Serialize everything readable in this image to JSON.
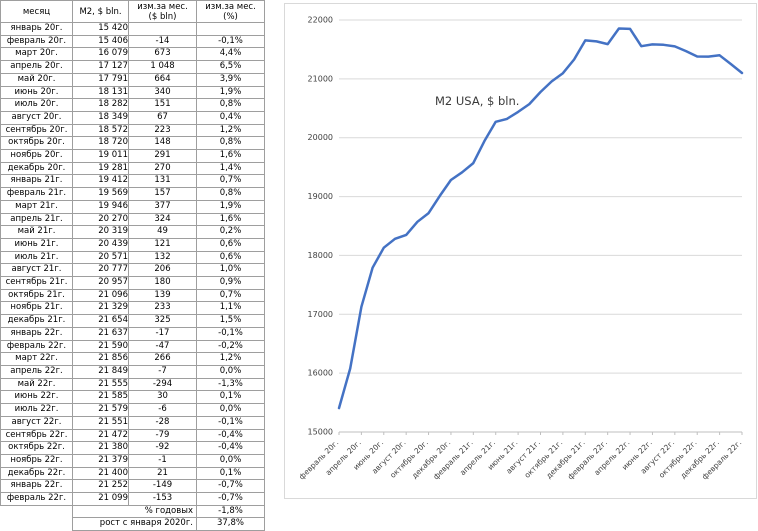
{
  "table": {
    "headers": {
      "month": "месяц",
      "m2": "M2, $ bln.",
      "chg_abs_1": "изм.за мес.",
      "chg_abs_2": "($ bln)",
      "chg_pct_1": "изм.за мес.",
      "chg_pct_2": "(%)"
    },
    "rows": [
      [
        "январь 20г.",
        "15 420",
        "",
        ""
      ],
      [
        "февраль 20г.",
        "15 406",
        "-14",
        "-0,1%"
      ],
      [
        "март 20г.",
        "16 079",
        "673",
        "4,4%"
      ],
      [
        "апрель 20г.",
        "17 127",
        "1 048",
        "6,5%"
      ],
      [
        "май 20г.",
        "17 791",
        "664",
        "3,9%"
      ],
      [
        "июнь 20г.",
        "18 131",
        "340",
        "1,9%"
      ],
      [
        "июль 20г.",
        "18 282",
        "151",
        "0,8%"
      ],
      [
        "август 20г.",
        "18 349",
        "67",
        "0,4%"
      ],
      [
        "сентябрь 20г.",
        "18 572",
        "223",
        "1,2%"
      ],
      [
        "октябрь 20г.",
        "18 720",
        "148",
        "0,8%"
      ],
      [
        "ноябрь 20г.",
        "19 011",
        "291",
        "1,6%"
      ],
      [
        "декабрь 20г.",
        "19 281",
        "270",
        "1,4%"
      ],
      [
        "январь 21г.",
        "19 412",
        "131",
        "0,7%"
      ],
      [
        "февраль 21г.",
        "19 569",
        "157",
        "0,8%"
      ],
      [
        "март 21г.",
        "19 946",
        "377",
        "1,9%"
      ],
      [
        "апрель 21г.",
        "20 270",
        "324",
        "1,6%"
      ],
      [
        "май 21г.",
        "20 319",
        "49",
        "0,2%"
      ],
      [
        "июнь 21г.",
        "20 439",
        "121",
        "0,6%"
      ],
      [
        "июль 21г.",
        "20 571",
        "132",
        "0,6%"
      ],
      [
        "август 21г.",
        "20 777",
        "206",
        "1,0%"
      ],
      [
        "сентябрь 21г.",
        "20 957",
        "180",
        "0,9%"
      ],
      [
        "октябрь 21г.",
        "21 096",
        "139",
        "0,7%"
      ],
      [
        "ноябрь 21г.",
        "21 329",
        "233",
        "1,1%"
      ],
      [
        "декабрь 21г.",
        "21 654",
        "325",
        "1,5%"
      ],
      [
        "январь 22г.",
        "21 637",
        "-17",
        "-0,1%"
      ],
      [
        "февраль 22г.",
        "21 590",
        "-47",
        "-0,2%"
      ],
      [
        "март 22г.",
        "21 856",
        "266",
        "1,2%"
      ],
      [
        "апрель 22г.",
        "21 849",
        "-7",
        "0,0%"
      ],
      [
        "май 22г.",
        "21 555",
        "-294",
        "-1,3%"
      ],
      [
        "июнь 22г.",
        "21 585",
        "30",
        "0,1%"
      ],
      [
        "июль 22г.",
        "21 579",
        "-6",
        "0,0%"
      ],
      [
        "август 22г.",
        "21 551",
        "-28",
        "-0,1%"
      ],
      [
        "сентябрь 22г.",
        "21 472",
        "-79",
        "-0,4%"
      ],
      [
        "октябрь 22г.",
        "21 380",
        "-92",
        "-0,4%"
      ],
      [
        "ноябрь 22г.",
        "21 379",
        "-1",
        "0,0%"
      ],
      [
        "декабрь 22г.",
        "21 400",
        "21",
        "0,1%"
      ],
      [
        "январь 22г.",
        "21 252",
        "-149",
        "-0,7%"
      ],
      [
        "февраль 22г.",
        "21 099",
        "-153",
        "-0,7%"
      ]
    ],
    "footer": [
      {
        "label": "% годовых",
        "value": "-1,8%"
      },
      {
        "label": "рост с января 2020г.",
        "value": "37,8%"
      }
    ]
  },
  "chart_data": {
    "type": "line",
    "title": "M2 USA, $ bln.",
    "x_labels": [
      "февраль 20г.",
      "апрель 20г.",
      "июнь 20г.",
      "август 20г.",
      "октябрь 20г.",
      "декабрь 20г.",
      "февраль 21г.",
      "апрель 21г.",
      "июнь 21г.",
      "август 21г.",
      "октябрь 21г.",
      "декабрь 21г.",
      "февраль 22г.",
      "апрель 22г.",
      "июнь 22г.",
      "август 22г.",
      "октябрь 22г.",
      "декабрь 22г.",
      "февраль 22г."
    ],
    "x_label_step": 2,
    "values": [
      15406,
      16079,
      17127,
      17791,
      18131,
      18282,
      18349,
      18572,
      18720,
      19011,
      19281,
      19412,
      19569,
      19946,
      20270,
      20319,
      20439,
      20571,
      20777,
      20957,
      21096,
      21329,
      21654,
      21637,
      21590,
      21856,
      21849,
      21555,
      21585,
      21579,
      21551,
      21472,
      21380,
      21379,
      21400,
      21252,
      21099
    ],
    "ylim": [
      15000,
      22000
    ],
    "yticks": [
      15000,
      16000,
      17000,
      18000,
      19000,
      20000,
      21000,
      22000
    ],
    "grid": true,
    "legend": "none",
    "line_color": "#4472C4",
    "grid_color": "#d9d9d9",
    "axis_color": "#bfbfbf",
    "label_color": "#404040"
  }
}
